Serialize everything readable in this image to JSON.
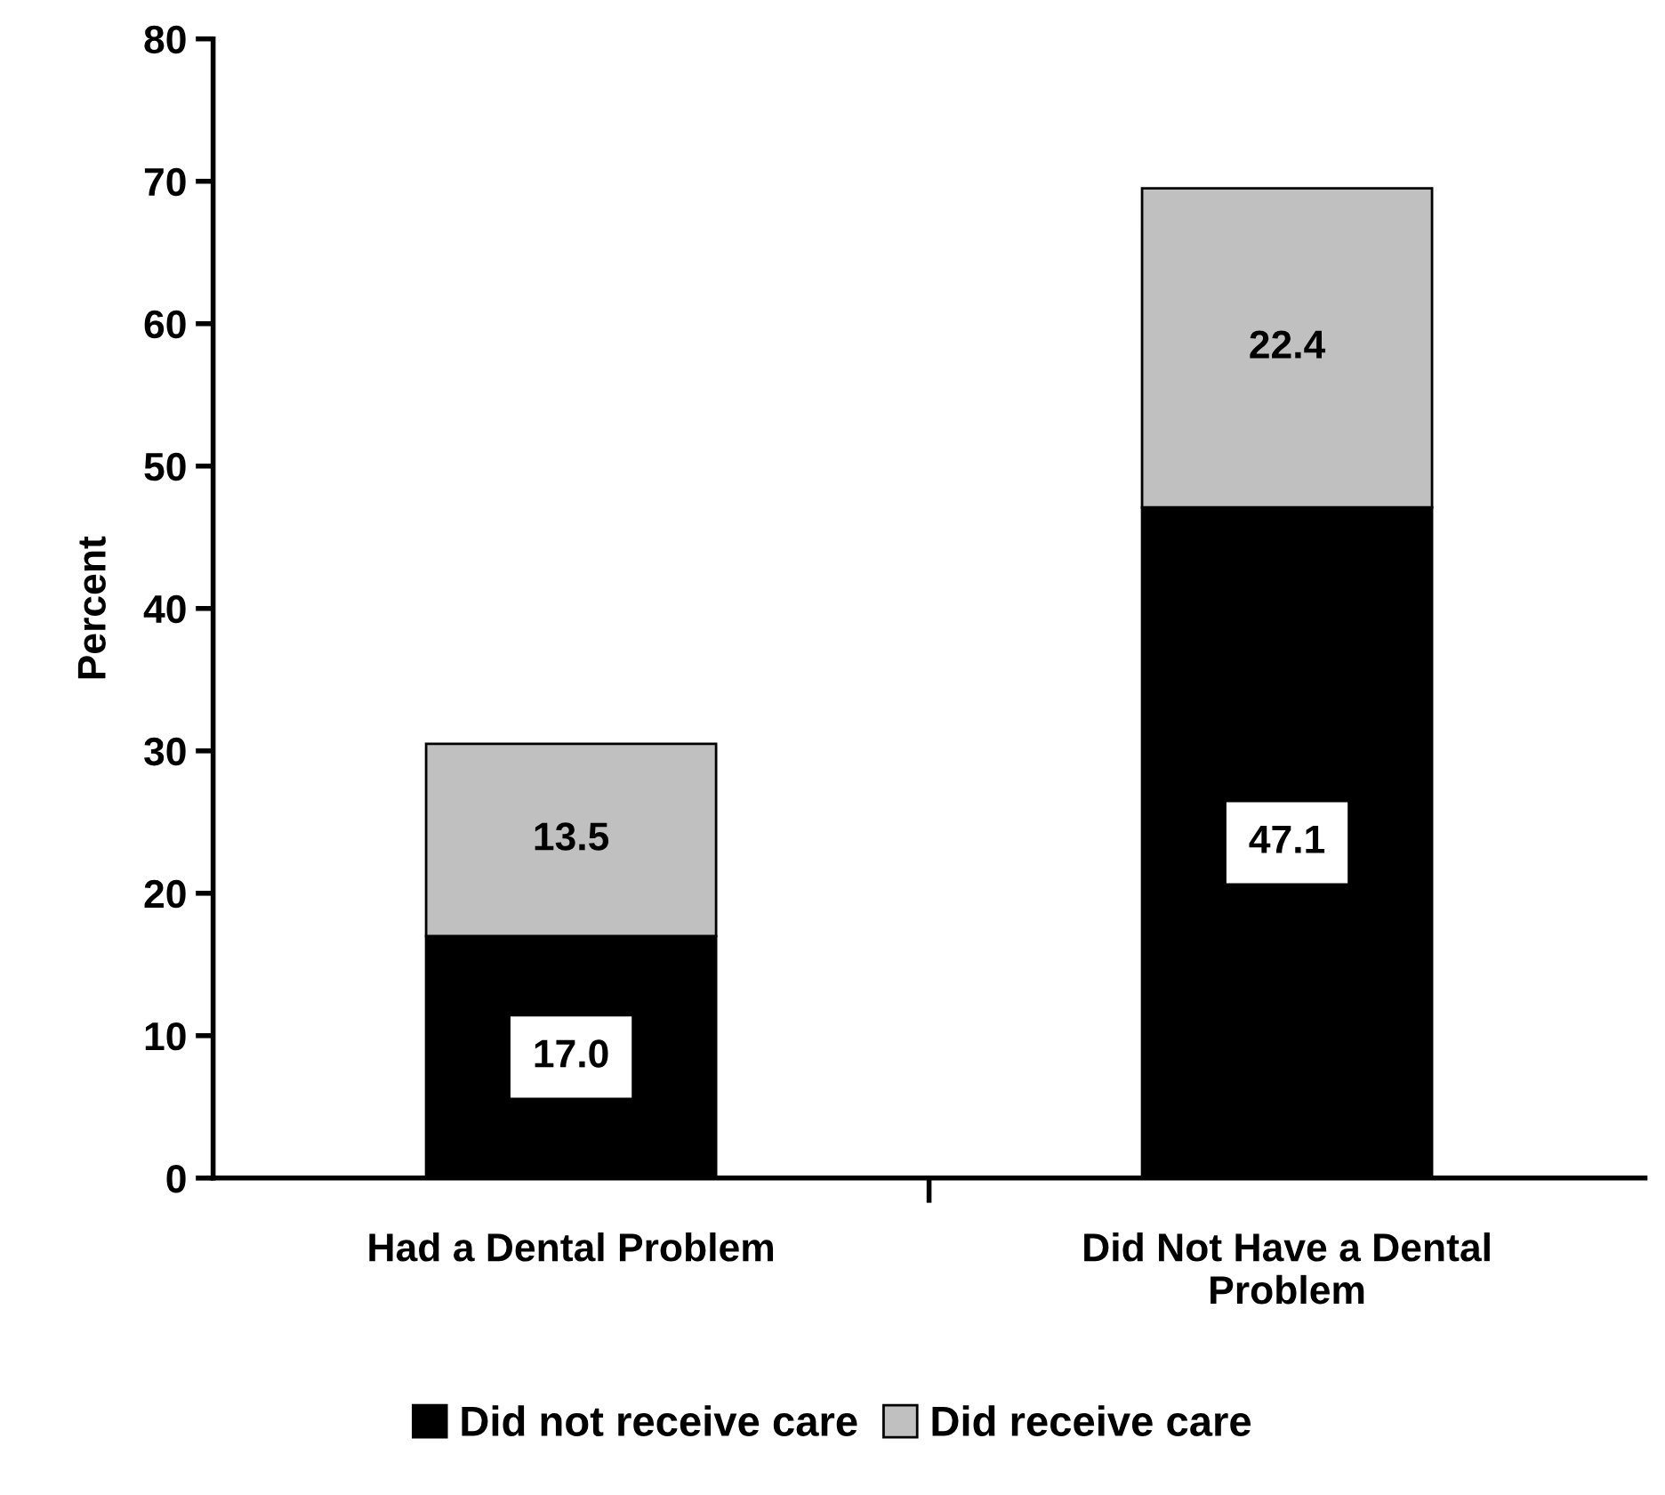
{
  "chart_data": {
    "type": "bar",
    "stacked": true,
    "ylabel": "Percent",
    "categories": [
      "Had a Dental Problem",
      "Did Not Have a Dental\nProblem"
    ],
    "series": [
      {
        "name": "Did not receive care",
        "color": "#000000",
        "values": [
          17.0,
          47.1
        ],
        "value_labels": [
          "17.0",
          "47.1"
        ]
      },
      {
        "name": "Did receive care",
        "color": "#c0c0c0",
        "values": [
          13.5,
          22.4
        ],
        "value_labels": [
          "13.5",
          "22.4"
        ]
      }
    ],
    "ylim": [
      0,
      80
    ],
    "yticks": [
      0,
      10,
      20,
      30,
      40,
      50,
      60,
      70,
      80
    ],
    "grid": false,
    "legend": "bottom"
  }
}
